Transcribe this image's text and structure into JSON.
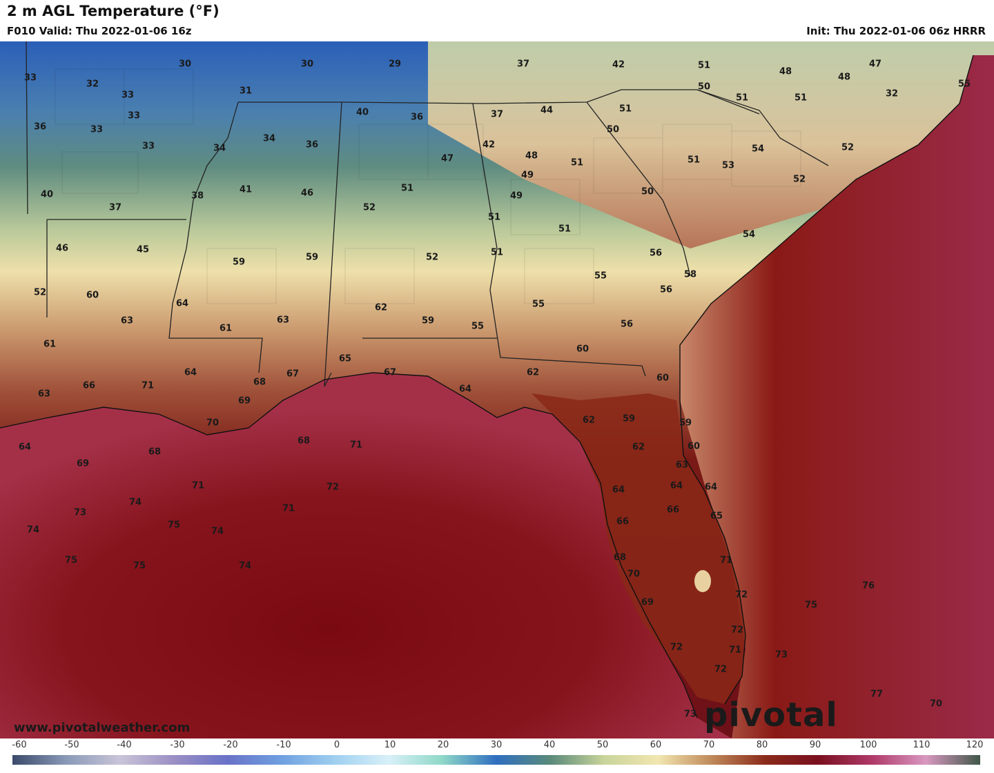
{
  "header": {
    "title": "2 m AGL Temperature (°F)",
    "valid": "F010 Valid: Thu 2022-01-06 16z",
    "init": "Init: Thu 2022-01-06 06z HRRR"
  },
  "footer": {
    "website": "www.pivotalweather.com",
    "logo": "pivotal weather"
  },
  "scale": {
    "ticks": [
      "-60",
      "-50",
      "-40",
      "-30",
      "-20",
      "-10",
      "0",
      "10",
      "20",
      "30",
      "40",
      "50",
      "60",
      "70",
      "80",
      "90",
      "100",
      "110",
      "120"
    ],
    "colors": [
      "#3a4a6a",
      "#8a9ab8",
      "#c9c4d8",
      "#9b8fc4",
      "#6a72c8",
      "#6fa0e0",
      "#9fd0f0",
      "#d8f0f8",
      "#8fd8c8",
      "#2f6fc0",
      "#5a8a7a",
      "#c8d49a",
      "#f2e6b0",
      "#c08a5a",
      "#8a2a1a",
      "#7a1020",
      "#b03a6a",
      "#d898c0",
      "#40584a"
    ]
  },
  "temps": [
    {
      "t": "30"
    },
    {
      "t": "30"
    },
    {
      "t": "29"
    },
    {
      "t": "37"
    },
    {
      "t": "42"
    },
    {
      "t": "51"
    },
    {
      "t": "48"
    },
    {
      "t": "48"
    },
    {
      "t": "47"
    },
    {
      "t": "33"
    },
    {
      "t": "32"
    },
    {
      "t": "33"
    },
    {
      "t": "31"
    },
    {
      "t": "50"
    },
    {
      "t": "51"
    },
    {
      "t": "51"
    },
    {
      "t": "52"
    },
    {
      "t": "55"
    },
    {
      "t": "33"
    },
    {
      "t": "40"
    },
    {
      "t": "37"
    },
    {
      "t": "44"
    },
    {
      "t": "51"
    },
    {
      "t": "36"
    },
    {
      "t": "33"
    },
    {
      "t": "32"
    },
    {
      "t": "36"
    },
    {
      "t": "50"
    },
    {
      "t": "33"
    },
    {
      "t": "34"
    },
    {
      "t": "34"
    },
    {
      "t": "36"
    },
    {
      "t": "42"
    },
    {
      "t": "54"
    },
    {
      "t": "47"
    },
    {
      "t": "48"
    },
    {
      "t": "51"
    },
    {
      "t": "53"
    },
    {
      "t": "52"
    },
    {
      "t": "49"
    },
    {
      "t": "51"
    },
    {
      "t": "50"
    },
    {
      "t": "40"
    },
    {
      "t": "38"
    },
    {
      "t": "41"
    },
    {
      "t": "46"
    },
    {
      "t": "51"
    },
    {
      "t": "49"
    },
    {
      "t": "37"
    },
    {
      "t": "52"
    },
    {
      "t": "51"
    },
    {
      "t": "54"
    },
    {
      "t": "51"
    },
    {
      "t": "46"
    },
    {
      "t": "45"
    },
    {
      "t": "59"
    },
    {
      "t": "59"
    },
    {
      "t": "52"
    },
    {
      "t": "51"
    },
    {
      "t": "56"
    },
    {
      "t": "55"
    },
    {
      "t": "58"
    },
    {
      "t": "56"
    },
    {
      "t": "52"
    },
    {
      "t": "60"
    },
    {
      "t": "64"
    },
    {
      "t": "62"
    },
    {
      "t": "55"
    },
    {
      "t": "63"
    },
    {
      "t": "61"
    },
    {
      "t": "63"
    },
    {
      "t": "59"
    },
    {
      "t": "55"
    },
    {
      "t": "56"
    },
    {
      "t": "61"
    },
    {
      "t": "60"
    },
    {
      "t": "65"
    },
    {
      "t": "64"
    },
    {
      "t": "66"
    },
    {
      "t": "71"
    },
    {
      "t": "68"
    },
    {
      "t": "67"
    },
    {
      "t": "67"
    },
    {
      "t": "62"
    },
    {
      "t": "60"
    },
    {
      "t": "63"
    },
    {
      "t": "69"
    },
    {
      "t": "64"
    },
    {
      "t": "70"
    },
    {
      "t": "62"
    },
    {
      "t": "59"
    },
    {
      "t": "59"
    },
    {
      "t": "60"
    },
    {
      "t": "64"
    },
    {
      "t": "68"
    },
    {
      "t": "68"
    },
    {
      "t": "71"
    },
    {
      "t": "69"
    },
    {
      "t": "62"
    },
    {
      "t": "63"
    },
    {
      "t": "71"
    },
    {
      "t": "72"
    },
    {
      "t": "64"
    },
    {
      "t": "64"
    },
    {
      "t": "64"
    },
    {
      "t": "74"
    },
    {
      "t": "73"
    },
    {
      "t": "71"
    },
    {
      "t": "66"
    },
    {
      "t": "65"
    },
    {
      "t": "74"
    },
    {
      "t": "75"
    },
    {
      "t": "74"
    },
    {
      "t": "66"
    },
    {
      "t": "75"
    },
    {
      "t": "75"
    },
    {
      "t": "74"
    },
    {
      "t": "68"
    },
    {
      "t": "71"
    },
    {
      "t": "70"
    },
    {
      "t": "72"
    },
    {
      "t": "69"
    },
    {
      "t": "75"
    },
    {
      "t": "76"
    },
    {
      "t": "72"
    },
    {
      "t": "72"
    },
    {
      "t": "71"
    },
    {
      "t": "73"
    },
    {
      "t": "72"
    },
    {
      "t": "77"
    },
    {
      "t": "73"
    },
    {
      "t": "70"
    }
  ]
}
